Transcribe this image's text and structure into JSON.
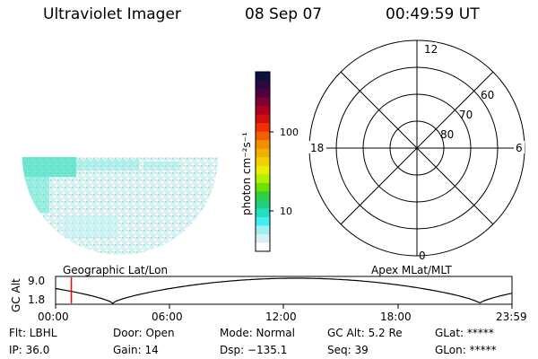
{
  "header": {
    "title": "Ultraviolet Imager",
    "date": "08 Sep 07",
    "time": "00:49:59 UT"
  },
  "colorbar": {
    "label": "photon cm⁻²s⁻¹",
    "ticks": [
      "100",
      "10"
    ],
    "colors": [
      "#101040",
      "#2a0a40",
      "#500040",
      "#800030",
      "#b00020",
      "#d01010",
      "#f03000",
      "#f06000",
      "#f09000",
      "#f0b000",
      "#f0d000",
      "#e8f000",
      "#b0f000",
      "#70e000",
      "#30d040",
      "#20d080",
      "#20e0c0",
      "#40f0f0",
      "#a0f0f0",
      "#d8f0f0",
      "#ffffff"
    ]
  },
  "polar": {
    "labels": {
      "top": "12",
      "left": "18",
      "right": "6",
      "bottom": "0"
    },
    "lat_labels": [
      "60",
      "70",
      "80"
    ]
  },
  "timeline": {
    "left_label": "Geographic Lat/Lon",
    "right_label": "Apex MLat/MLT",
    "axis_title": "GC Alt",
    "y_ticks": [
      "9.0",
      "1.8"
    ],
    "x_ticks": [
      "00:00",
      "06:00",
      "12:00",
      "18:00",
      "23:59"
    ],
    "curve_color": "#000000",
    "marker_color": "#ff0000",
    "marker_time_hours": 0.83
  },
  "status": {
    "row1": [
      "Flt: LBHL",
      "Door: Open",
      "Mode: Normal",
      "GC Alt: 5.2 Re",
      "GLat: *****"
    ],
    "row2": [
      "IP: 36.0",
      "Gain: 14",
      "Dsp: −135.1",
      "Seq: 39",
      "GLon: *****"
    ]
  }
}
